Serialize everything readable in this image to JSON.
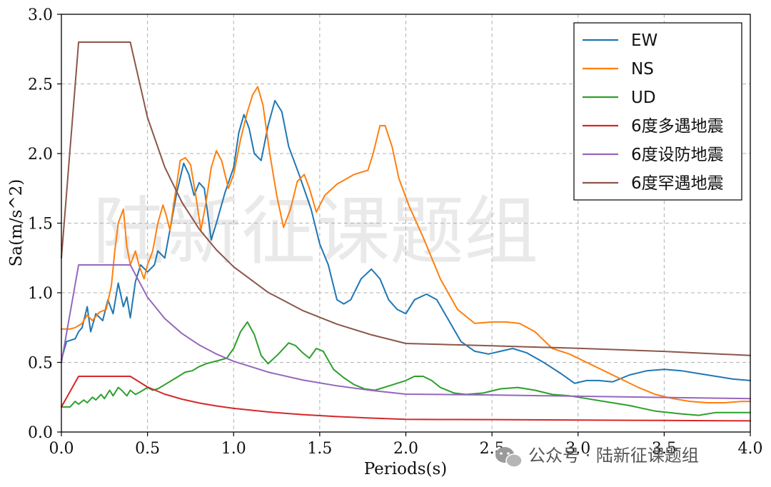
{
  "watermark_text": "陆新征课题组",
  "source_label": "公众号 · 陆新征课题组",
  "chart_data": {
    "type": "line",
    "xlabel": "Periods(s)",
    "ylabel": "Sa(m/s^2)",
    "xlim": [
      0,
      4.0
    ],
    "ylim": [
      0,
      3.0
    ],
    "xticks": [
      "0.0",
      "0.5",
      "1.0",
      "1.5",
      "2.0",
      "2.5",
      "3.0",
      "3.5",
      "4.0"
    ],
    "yticks": [
      "0.0",
      "0.5",
      "1.0",
      "1.5",
      "2.0",
      "2.5",
      "3.0"
    ],
    "grid": true,
    "legend_position": "top-right",
    "series": [
      {
        "name": "EW",
        "color": "#1f77b4",
        "points": [
          [
            0,
            0.52
          ],
          [
            0.03,
            0.65
          ],
          [
            0.08,
            0.67
          ],
          [
            0.1,
            0.72
          ],
          [
            0.12,
            0.75
          ],
          [
            0.15,
            0.9
          ],
          [
            0.17,
            0.72
          ],
          [
            0.2,
            0.85
          ],
          [
            0.24,
            0.8
          ],
          [
            0.27,
            0.95
          ],
          [
            0.3,
            0.85
          ],
          [
            0.33,
            1.07
          ],
          [
            0.36,
            0.9
          ],
          [
            0.38,
            0.97
          ],
          [
            0.4,
            0.82
          ],
          [
            0.43,
            1.08
          ],
          [
            0.46,
            1.2
          ],
          [
            0.5,
            1.15
          ],
          [
            0.54,
            1.2
          ],
          [
            0.56,
            1.3
          ],
          [
            0.6,
            1.25
          ],
          [
            0.63,
            1.45
          ],
          [
            0.67,
            1.72
          ],
          [
            0.71,
            1.93
          ],
          [
            0.74,
            1.85
          ],
          [
            0.77,
            1.7
          ],
          [
            0.8,
            1.79
          ],
          [
            0.83,
            1.75
          ],
          [
            0.87,
            1.38
          ],
          [
            0.9,
            1.5
          ],
          [
            0.95,
            1.72
          ],
          [
            1.0,
            1.9
          ],
          [
            1.03,
            2.15
          ],
          [
            1.06,
            2.28
          ],
          [
            1.09,
            2.18
          ],
          [
            1.12,
            2.0
          ],
          [
            1.16,
            1.95
          ],
          [
            1.2,
            2.2
          ],
          [
            1.24,
            2.38
          ],
          [
            1.28,
            2.3
          ],
          [
            1.32,
            2.05
          ],
          [
            1.38,
            1.85
          ],
          [
            1.45,
            1.6
          ],
          [
            1.5,
            1.35
          ],
          [
            1.55,
            1.2
          ],
          [
            1.6,
            0.95
          ],
          [
            1.64,
            0.92
          ],
          [
            1.68,
            0.95
          ],
          [
            1.74,
            1.1
          ],
          [
            1.8,
            1.17
          ],
          [
            1.85,
            1.1
          ],
          [
            1.9,
            0.95
          ],
          [
            1.95,
            0.88
          ],
          [
            2.0,
            0.85
          ],
          [
            2.05,
            0.95
          ],
          [
            2.12,
            0.99
          ],
          [
            2.18,
            0.95
          ],
          [
            2.25,
            0.8
          ],
          [
            2.32,
            0.65
          ],
          [
            2.4,
            0.58
          ],
          [
            2.48,
            0.56
          ],
          [
            2.55,
            0.58
          ],
          [
            2.62,
            0.6
          ],
          [
            2.7,
            0.57
          ],
          [
            2.8,
            0.5
          ],
          [
            2.9,
            0.42
          ],
          [
            2.98,
            0.35
          ],
          [
            3.05,
            0.37
          ],
          [
            3.12,
            0.37
          ],
          [
            3.2,
            0.36
          ],
          [
            3.3,
            0.41
          ],
          [
            3.4,
            0.44
          ],
          [
            3.5,
            0.45
          ],
          [
            3.6,
            0.44
          ],
          [
            3.7,
            0.42
          ],
          [
            3.8,
            0.4
          ],
          [
            3.9,
            0.38
          ],
          [
            4.0,
            0.37
          ]
        ]
      },
      {
        "name": "NS",
        "color": "#ff7f0e",
        "points": [
          [
            0,
            0.74
          ],
          [
            0.05,
            0.74
          ],
          [
            0.08,
            0.75
          ],
          [
            0.12,
            0.78
          ],
          [
            0.15,
            0.84
          ],
          [
            0.18,
            0.8
          ],
          [
            0.22,
            0.86
          ],
          [
            0.26,
            0.88
          ],
          [
            0.29,
            1.05
          ],
          [
            0.31,
            1.3
          ],
          [
            0.33,
            1.5
          ],
          [
            0.36,
            1.6
          ],
          [
            0.38,
            1.33
          ],
          [
            0.4,
            1.2
          ],
          [
            0.43,
            1.3
          ],
          [
            0.45,
            1.2
          ],
          [
            0.48,
            1.1
          ],
          [
            0.5,
            1.2
          ],
          [
            0.53,
            1.3
          ],
          [
            0.56,
            1.5
          ],
          [
            0.59,
            1.63
          ],
          [
            0.61,
            1.55
          ],
          [
            0.63,
            1.45
          ],
          [
            0.66,
            1.7
          ],
          [
            0.69,
            1.95
          ],
          [
            0.72,
            1.97
          ],
          [
            0.75,
            1.92
          ],
          [
            0.78,
            1.7
          ],
          [
            0.81,
            1.45
          ],
          [
            0.84,
            1.65
          ],
          [
            0.87,
            1.9
          ],
          [
            0.9,
            2.02
          ],
          [
            0.93,
            1.95
          ],
          [
            0.97,
            1.75
          ],
          [
            1.0,
            1.85
          ],
          [
            1.04,
            2.1
          ],
          [
            1.08,
            2.3
          ],
          [
            1.11,
            2.42
          ],
          [
            1.14,
            2.48
          ],
          [
            1.17,
            2.35
          ],
          [
            1.21,
            2.0
          ],
          [
            1.25,
            1.7
          ],
          [
            1.29,
            1.47
          ],
          [
            1.33,
            1.6
          ],
          [
            1.37,
            1.8
          ],
          [
            1.41,
            1.85
          ],
          [
            1.44,
            1.75
          ],
          [
            1.48,
            1.58
          ],
          [
            1.53,
            1.7
          ],
          [
            1.6,
            1.78
          ],
          [
            1.7,
            1.85
          ],
          [
            1.78,
            1.88
          ],
          [
            1.81,
            2.0
          ],
          [
            1.85,
            2.2
          ],
          [
            1.88,
            2.2
          ],
          [
            1.92,
            2.05
          ],
          [
            1.96,
            1.82
          ],
          [
            2.02,
            1.62
          ],
          [
            2.1,
            1.4
          ],
          [
            2.2,
            1.1
          ],
          [
            2.3,
            0.88
          ],
          [
            2.4,
            0.78
          ],
          [
            2.5,
            0.79
          ],
          [
            2.58,
            0.79
          ],
          [
            2.66,
            0.78
          ],
          [
            2.75,
            0.72
          ],
          [
            2.85,
            0.6
          ],
          [
            2.95,
            0.56
          ],
          [
            3.05,
            0.5
          ],
          [
            3.15,
            0.44
          ],
          [
            3.25,
            0.38
          ],
          [
            3.35,
            0.32
          ],
          [
            3.45,
            0.27
          ],
          [
            3.55,
            0.24
          ],
          [
            3.65,
            0.22
          ],
          [
            3.75,
            0.21
          ],
          [
            3.85,
            0.21
          ],
          [
            3.95,
            0.22
          ],
          [
            4.0,
            0.22
          ]
        ]
      },
      {
        "name": "UD",
        "color": "#2ca02c",
        "points": [
          [
            0,
            0.18
          ],
          [
            0.05,
            0.18
          ],
          [
            0.08,
            0.22
          ],
          [
            0.1,
            0.2
          ],
          [
            0.13,
            0.23
          ],
          [
            0.15,
            0.21
          ],
          [
            0.18,
            0.25
          ],
          [
            0.2,
            0.23
          ],
          [
            0.23,
            0.27
          ],
          [
            0.25,
            0.24
          ],
          [
            0.28,
            0.3
          ],
          [
            0.3,
            0.26
          ],
          [
            0.33,
            0.32
          ],
          [
            0.35,
            0.3
          ],
          [
            0.38,
            0.26
          ],
          [
            0.4,
            0.3
          ],
          [
            0.43,
            0.27
          ],
          [
            0.46,
            0.29
          ],
          [
            0.5,
            0.32
          ],
          [
            0.53,
            0.3
          ],
          [
            0.56,
            0.31
          ],
          [
            0.6,
            0.34
          ],
          [
            0.64,
            0.37
          ],
          [
            0.68,
            0.4
          ],
          [
            0.72,
            0.43
          ],
          [
            0.76,
            0.44
          ],
          [
            0.8,
            0.47
          ],
          [
            0.84,
            0.49
          ],
          [
            0.9,
            0.51
          ],
          [
            0.96,
            0.53
          ],
          [
            1.0,
            0.6
          ],
          [
            1.04,
            0.72
          ],
          [
            1.08,
            0.79
          ],
          [
            1.12,
            0.7
          ],
          [
            1.16,
            0.55
          ],
          [
            1.2,
            0.49
          ],
          [
            1.26,
            0.56
          ],
          [
            1.32,
            0.64
          ],
          [
            1.36,
            0.62
          ],
          [
            1.4,
            0.57
          ],
          [
            1.44,
            0.53
          ],
          [
            1.48,
            0.6
          ],
          [
            1.52,
            0.58
          ],
          [
            1.58,
            0.45
          ],
          [
            1.64,
            0.39
          ],
          [
            1.7,
            0.34
          ],
          [
            1.76,
            0.31
          ],
          [
            1.82,
            0.3
          ],
          [
            1.9,
            0.33
          ],
          [
            2.0,
            0.37
          ],
          [
            2.05,
            0.4
          ],
          [
            2.1,
            0.4
          ],
          [
            2.15,
            0.37
          ],
          [
            2.2,
            0.32
          ],
          [
            2.28,
            0.28
          ],
          [
            2.35,
            0.27
          ],
          [
            2.45,
            0.28
          ],
          [
            2.55,
            0.31
          ],
          [
            2.65,
            0.32
          ],
          [
            2.75,
            0.3
          ],
          [
            2.85,
            0.27
          ],
          [
            2.95,
            0.26
          ],
          [
            3.05,
            0.24
          ],
          [
            3.15,
            0.22
          ],
          [
            3.3,
            0.19
          ],
          [
            3.45,
            0.15
          ],
          [
            3.6,
            0.13
          ],
          [
            3.7,
            0.12
          ],
          [
            3.8,
            0.14
          ],
          [
            3.9,
            0.14
          ],
          [
            4.0,
            0.14
          ]
        ]
      },
      {
        "name": "6度多遇地震",
        "color": "#d62728",
        "points": [
          [
            0,
            0.18
          ],
          [
            0.1,
            0.4
          ],
          [
            0.4,
            0.4
          ],
          [
            0.5,
            0.323
          ],
          [
            0.6,
            0.272
          ],
          [
            0.7,
            0.236
          ],
          [
            0.8,
            0.208
          ],
          [
            0.9,
            0.187
          ],
          [
            1.0,
            0.17
          ],
          [
            1.2,
            0.144
          ],
          [
            1.4,
            0.125
          ],
          [
            1.6,
            0.111
          ],
          [
            1.8,
            0.1
          ],
          [
            2.0,
            0.091
          ],
          [
            2.2,
            0.09
          ],
          [
            2.5,
            0.089
          ],
          [
            3.0,
            0.086
          ],
          [
            3.5,
            0.083
          ],
          [
            4.0,
            0.08
          ]
        ]
      },
      {
        "name": "6度设防地震",
        "color": "#9467bd",
        "points": [
          [
            0,
            0.5
          ],
          [
            0.1,
            1.2
          ],
          [
            0.4,
            1.2
          ],
          [
            0.5,
            0.968
          ],
          [
            0.6,
            0.815
          ],
          [
            0.7,
            0.707
          ],
          [
            0.8,
            0.625
          ],
          [
            0.9,
            0.56
          ],
          [
            1.0,
            0.508
          ],
          [
            1.2,
            0.43
          ],
          [
            1.4,
            0.374
          ],
          [
            1.6,
            0.332
          ],
          [
            1.8,
            0.299
          ],
          [
            2.0,
            0.272
          ],
          [
            2.2,
            0.27
          ],
          [
            2.5,
            0.266
          ],
          [
            3.0,
            0.257
          ],
          [
            3.5,
            0.248
          ],
          [
            4.0,
            0.24
          ]
        ]
      },
      {
        "name": "6度罕遇地震",
        "color": "#8c564b",
        "points": [
          [
            0,
            1.25
          ],
          [
            0.1,
            2.8
          ],
          [
            0.4,
            2.8
          ],
          [
            0.5,
            2.259
          ],
          [
            0.6,
            1.902
          ],
          [
            0.7,
            1.649
          ],
          [
            0.8,
            1.458
          ],
          [
            0.9,
            1.308
          ],
          [
            1.0,
            1.186
          ],
          [
            1.2,
            1.003
          ],
          [
            1.4,
            0.873
          ],
          [
            1.6,
            0.775
          ],
          [
            1.8,
            0.698
          ],
          [
            2.0,
            0.636
          ],
          [
            2.2,
            0.629
          ],
          [
            2.5,
            0.619
          ],
          [
            3.0,
            0.601
          ],
          [
            3.5,
            0.579
          ],
          [
            4.0,
            0.55
          ]
        ]
      }
    ]
  }
}
